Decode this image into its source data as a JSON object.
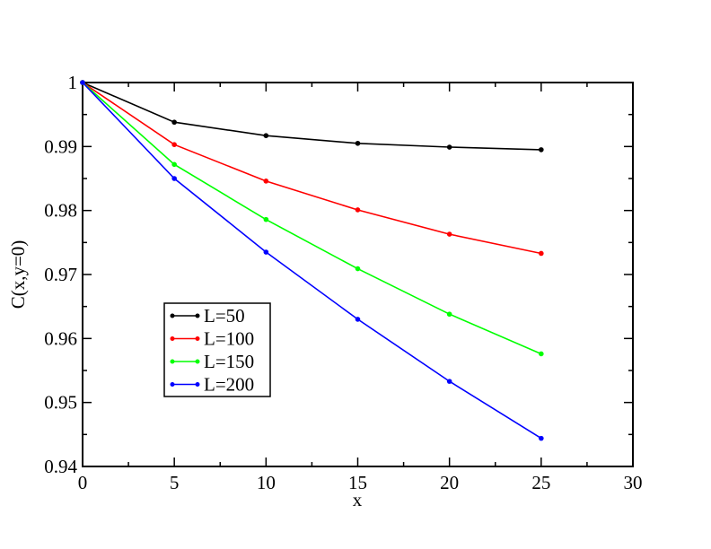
{
  "chart_data": {
    "type": "line",
    "xlabel": "x",
    "ylabel": "C(x,y=0)",
    "xlim": [
      0,
      30
    ],
    "ylim": [
      0.94,
      1.0
    ],
    "xticks": [
      0,
      5,
      10,
      15,
      20,
      25,
      30
    ],
    "xtick_labels": [
      "0",
      "5",
      "10",
      "15",
      "20",
      "25",
      "30"
    ],
    "yticks": [
      0.94,
      0.95,
      0.96,
      0.97,
      0.98,
      0.99,
      1.0
    ],
    "ytick_labels": [
      "0.94",
      "0.95",
      "0.96",
      "0.97",
      "0.98",
      "0.99",
      "1"
    ],
    "grid": false,
    "legend_position": "lower-left",
    "x": [
      0,
      5,
      10,
      15,
      20,
      25
    ],
    "series": [
      {
        "name": "L=50",
        "color": "#000000",
        "values": [
          1.0,
          0.9938,
          0.9917,
          0.9905,
          0.9899,
          0.9895
        ]
      },
      {
        "name": "L=100",
        "color": "#ff0000",
        "values": [
          1.0,
          0.9903,
          0.9846,
          0.9801,
          0.9763,
          0.9733
        ]
      },
      {
        "name": "L=150",
        "color": "#00ff00",
        "values": [
          1.0,
          0.9872,
          0.9786,
          0.9709,
          0.9638,
          0.9576
        ]
      },
      {
        "name": "L=200",
        "color": "#0000ff",
        "values": [
          1.0,
          0.985,
          0.9735,
          0.963,
          0.9533,
          0.9444
        ]
      }
    ]
  }
}
